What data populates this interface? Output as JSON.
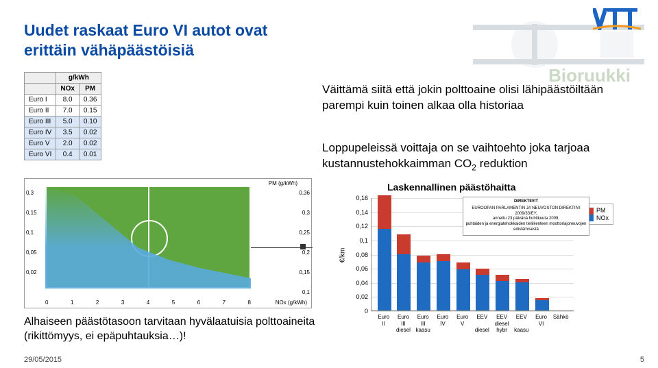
{
  "title_line1": "Uudet raskaat Euro VI autot ovat",
  "title_line2": "erittäin vähäpäästöisiä",
  "logo_text": "VTT",
  "bioruukki": "Bioruukki",
  "para1": "Väittämä siitä että jokin polttoaine olisi lähipäästöiltään parempi kuin toinen alkaa olla historiaa",
  "para2_a": "Loppupeleissä voittaja on se vaihtoehto joka tarjoaa kustannustehokkaimman CO",
  "para2_sub": "2",
  "para2_b": " reduktion",
  "bottom_text": "Alhaiseen päästötasoon tarvitaan hyvälaatuisia polttoaineita (rikittömyys, ei epäpuhtauksia…)!",
  "footer_date": "29/05/2015",
  "page_number": "5",
  "euro_table": {
    "header": [
      "",
      "g/kWh",
      ""
    ],
    "sub": [
      "",
      "NOx",
      "PM"
    ],
    "rows": [
      [
        "Euro I",
        "8.0",
        "0.36"
      ],
      [
        "Euro II",
        "7.0",
        "0.15"
      ],
      [
        "Euro III",
        "5.0",
        "0.10"
      ],
      [
        "Euro IV",
        "3.5",
        "0.02"
      ],
      [
        "Euro V",
        "2.0",
        "0.02"
      ],
      [
        "Euro VI",
        "0.4",
        "0.01"
      ]
    ],
    "row_colors": [
      "#ffffff",
      "#ffffff",
      "#d9e6f7",
      "#d9e6f7",
      "#d9e6f7",
      "#d9e6f7"
    ]
  },
  "mid_chart": {
    "y1_ticks": [
      "0,3",
      "0,15",
      "0,1",
      "0,05",
      "0,02"
    ],
    "y2_ticks": [
      "0,36",
      "0,3",
      "0,25",
      "0,2",
      "0,15",
      "0,1"
    ],
    "x_ticks": [
      "0",
      "1",
      "2",
      "3",
      "4",
      "5",
      "6",
      "7",
      "8"
    ],
    "x_label": "NOx (g/kWh)",
    "pm_label": "PM (g/kWh)"
  },
  "bar_chart": {
    "title": "Laskennallinen päästöhaitta",
    "yaxis_title": "€/km",
    "ymax": 0.16,
    "y_ticks": [
      "0",
      "0,02",
      "0,04",
      "0,06",
      "0,08",
      "0,1",
      "0,12",
      "0,14",
      "0,16"
    ],
    "colors": {
      "NOx": "#1f6bc2",
      "PM": "#c93b2e"
    },
    "legend": [
      "PM",
      "NOx"
    ],
    "categories": [
      {
        "l1": "Euro",
        "l2": "II",
        "l3": ""
      },
      {
        "l1": "Euro",
        "l2": "III",
        "l3": "diesel"
      },
      {
        "l1": "Euro",
        "l2": "III",
        "l3": "kaasu"
      },
      {
        "l1": "Euro",
        "l2": "IV",
        "l3": ""
      },
      {
        "l1": "Euro",
        "l2": "V",
        "l3": ""
      },
      {
        "l1": "EEV",
        "l2": "",
        "l3": "diesel"
      },
      {
        "l1": "EEV",
        "l2": "diesel",
        "l3": "hybr"
      },
      {
        "l1": "EEV",
        "l2": "",
        "l3": "kaasu"
      },
      {
        "l1": "Euro",
        "l2": "VI",
        "l3": ""
      },
      {
        "l1": "Sähkö",
        "l2": "",
        "l3": ""
      }
    ],
    "nox": [
      0.115,
      0.08,
      0.068,
      0.07,
      0.058,
      0.05,
      0.042,
      0.04,
      0.015,
      0.0
    ],
    "pm": [
      0.048,
      0.028,
      0.01,
      0.01,
      0.01,
      0.009,
      0.008,
      0.005,
      0.002,
      0.0
    ]
  },
  "directive": {
    "l1": "DIREKTIIVIT",
    "l2": "EUROOPAN PARLAMENTIN JA NEUVOSTON DIREKTIIVI 2009/33/EY,",
    "l3": "annettu 23 päivänä huhtikuuta 2009,",
    "l4": "puhtaiden ja energiatehokkaiden tieliikenteen moottoriajoneuvojen edistämisestä"
  }
}
